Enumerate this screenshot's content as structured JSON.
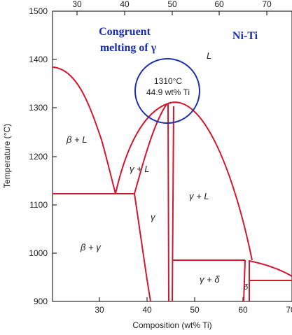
{
  "diagram": {
    "annotation": {
      "line1": "Congruent",
      "line2": "melting of γ",
      "system": "Ni-Ti",
      "point_temp": "1310°C",
      "point_comp": "44.9 wt% Ti",
      "color": "#1a2fb0"
    },
    "axes": {
      "xlabel": "Composition (wt% Ti)",
      "ylabel": "Temperature (°C)",
      "x_ticks_bottom": [
        "30",
        "40",
        "50",
        "60",
        "70"
      ],
      "x_ticks_top": [
        "30",
        "40",
        "50",
        "60",
        "70"
      ],
      "y_ticks": [
        "900",
        "1000",
        "1100",
        "1200",
        "1300",
        "1400",
        "1500"
      ]
    },
    "regions": {
      "L": "L",
      "beta_L": "β + L",
      "gamma_L_left": "γ + L",
      "gamma_L_right": "γ + L",
      "gamma": "γ",
      "beta_gamma": "β + γ",
      "gamma_delta": "γ + δ",
      "delta": "δ"
    },
    "line_color": "#d2182f",
    "range": {
      "x": [
        20,
        74
      ],
      "y": [
        900,
        1500
      ]
    }
  }
}
